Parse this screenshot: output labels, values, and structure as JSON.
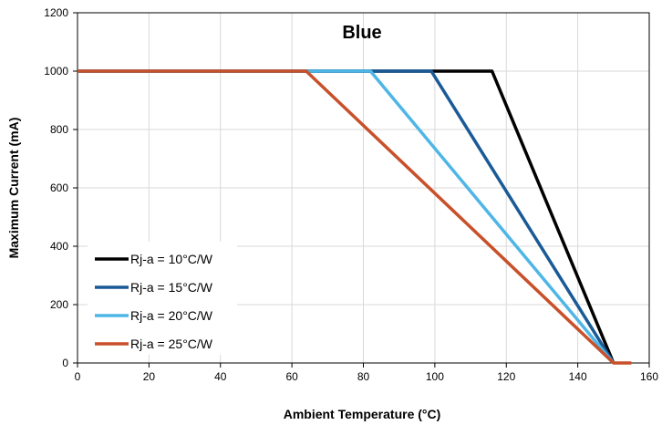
{
  "chart_data": {
    "type": "line",
    "title": "Blue",
    "xlabel": "Ambient Temperature (°C)",
    "ylabel": "Maximum Current (mA)",
    "xlim": [
      0,
      160
    ],
    "ylim": [
      0,
      1200
    ],
    "xticks": [
      0,
      20,
      40,
      60,
      80,
      100,
      120,
      140,
      160
    ],
    "yticks": [
      0,
      200,
      400,
      600,
      800,
      1000,
      1200
    ],
    "grid": true,
    "legend_position": "bottom-left",
    "series": [
      {
        "name": "Rj-a = 10°C/W",
        "color": "#000000",
        "points": [
          [
            0,
            1000
          ],
          [
            116,
            1000
          ],
          [
            150,
            0
          ]
        ]
      },
      {
        "name": "Rj-a = 15°C/W",
        "color": "#1a5a96",
        "points": [
          [
            0,
            1000
          ],
          [
            99,
            1000
          ],
          [
            150,
            0
          ]
        ]
      },
      {
        "name": "Rj-a = 20°C/W",
        "color": "#4eb6e6",
        "points": [
          [
            0,
            1000
          ],
          [
            82,
            1000
          ],
          [
            150,
            0
          ]
        ]
      },
      {
        "name": "Rj-a = 25°C/W",
        "color": "#c8502a",
        "points": [
          [
            0,
            1000
          ],
          [
            64,
            1000
          ],
          [
            150,
            0
          ],
          [
            155,
            0
          ]
        ]
      }
    ]
  }
}
